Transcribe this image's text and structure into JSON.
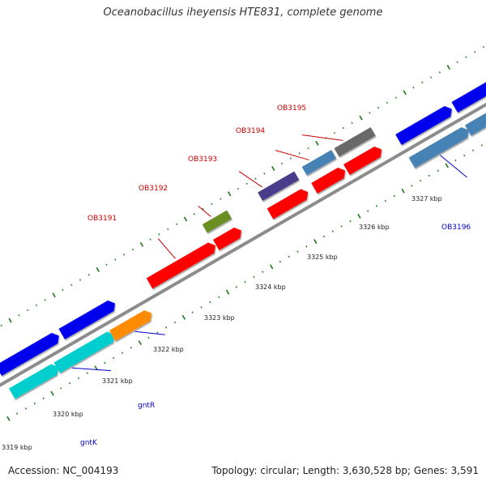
{
  "title": "Oceanobacillus iheyensis HTE831, complete genome",
  "footer": {
    "accession": "Accession: NC_004193",
    "summary": "Topology: circular; Length: 3,630,528 bp; Genes: 3,591"
  },
  "colors": {
    "backbone": "#8c8c8c",
    "tick": "#1a7a1a",
    "red": "#ff0000",
    "blue": "#0000ee",
    "steel": "#4682b4",
    "olive": "#6b8e23",
    "slate": "#483d8b",
    "dimgray": "#696969",
    "cyan": "#00cdcd",
    "orange": "#ff8c00",
    "label_red": "#cc0000",
    "label_blue": "#0000cc"
  },
  "kbp_labels": [
    "3319 kbp",
    "3320 kbp",
    "3321 kbp",
    "3322 kbp",
    "3323 kbp",
    "3324 kbp",
    "3325 kbp",
    "3326 kbp",
    "3327 kbp"
  ],
  "gene_labels_red": [
    "OB3191",
    "OB3192",
    "OB3193",
    "OB3194",
    "OB3195"
  ],
  "gene_labels_blue": [
    "OB3196",
    "gntR",
    "gntK"
  ]
}
